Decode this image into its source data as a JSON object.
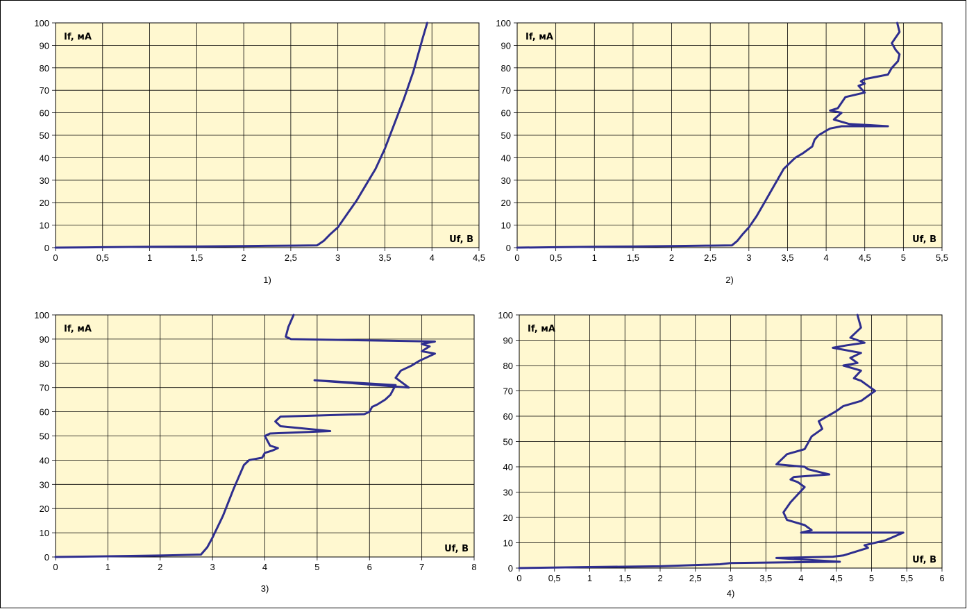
{
  "chart_data": [
    {
      "type": "line",
      "caption": "1)",
      "xlabel": "Uf, B",
      "ylabel": "If, мА",
      "xlim": [
        0,
        4.5
      ],
      "ylim": [
        0,
        100
      ],
      "xticks": [
        "0",
        "0,5",
        "1",
        "1,5",
        "2",
        "2,5",
        "3",
        "3,5",
        "4",
        "4,5"
      ],
      "yticks": [
        "0",
        "10",
        "20",
        "30",
        "40",
        "50",
        "60",
        "70",
        "80",
        "90",
        "100"
      ],
      "grid": true,
      "line_color": "#2e2e8e",
      "series": [
        {
          "x": [
            0,
            0.5,
            1,
            1.5,
            2,
            2.5,
            2.78,
            2.85,
            2.92,
            3.0,
            3.1,
            3.2,
            3.3,
            3.4,
            3.5,
            3.6,
            3.7,
            3.8,
            3.9,
            3.95
          ],
          "y": [
            0,
            0.2,
            0.4,
            0.5,
            0.7,
            0.9,
            1,
            3,
            6,
            9,
            15,
            21,
            28,
            35,
            44,
            55,
            66,
            78,
            93,
            100
          ]
        }
      ]
    },
    {
      "type": "line",
      "caption": "2)",
      "xlabel": "Uf, B",
      "ylabel": "If, мА",
      "xlim": [
        0,
        5.5
      ],
      "ylim": [
        0,
        100
      ],
      "xticks": [
        "0",
        "0,5",
        "1",
        "1,5",
        "2",
        "2,5",
        "3",
        "3,5",
        "4",
        "4,5",
        "5",
        "5,5"
      ],
      "yticks": [
        "0",
        "10",
        "20",
        "30",
        "40",
        "50",
        "60",
        "70",
        "80",
        "90",
        "100"
      ],
      "grid": true,
      "line_color": "#2e2e8e",
      "series": [
        {
          "x": [
            0,
            0.5,
            1,
            1.5,
            2,
            2.5,
            2.78,
            2.85,
            2.92,
            3.0,
            3.1,
            3.2,
            3.3,
            3.45,
            3.6,
            3.7,
            3.82,
            3.85,
            3.9,
            4.0,
            4.05,
            4.2,
            4.8,
            4.3,
            4.1,
            4.2,
            4.05,
            4.15,
            4.25,
            4.5,
            4.42,
            4.5,
            4.45,
            4.5,
            4.8,
            4.85,
            4.93,
            4.95,
            4.9,
            4.85,
            4.95,
            4.92
          ],
          "y": [
            0,
            0.2,
            0.4,
            0.5,
            0.7,
            0.9,
            1,
            3,
            6,
            9,
            14,
            20,
            26,
            35,
            40,
            42,
            45,
            48,
            50,
            52,
            53,
            54,
            54,
            55,
            57,
            60,
            61,
            62,
            67,
            69,
            72,
            73,
            74,
            75,
            77,
            80,
            83,
            86,
            88,
            91,
            96,
            100
          ]
        }
      ]
    },
    {
      "type": "line",
      "caption": "3)",
      "xlabel": "Uf, B",
      "ylabel": "If, мА",
      "xlim": [
        0,
        8
      ],
      "ylim": [
        0,
        100
      ],
      "xticks": [
        "0",
        "1",
        "2",
        "3",
        "4",
        "5",
        "6",
        "7",
        "8"
      ],
      "yticks": [
        "0",
        "10",
        "20",
        "30",
        "40",
        "50",
        "60",
        "70",
        "80",
        "90",
        "100"
      ],
      "grid": true,
      "line_color": "#2e2e8e",
      "series": [
        {
          "x": [
            0,
            1,
            2,
            2.78,
            2.9,
            3.0,
            3.2,
            3.4,
            3.6,
            3.7,
            3.95,
            4.0,
            4.15,
            4.25,
            4.1,
            4.0,
            4.1,
            5.25,
            4.3,
            4.2,
            4.3,
            5.9,
            6.0,
            6.05,
            6.15,
            6.3,
            6.4,
            6.5,
            4.95,
            6.75,
            6.5,
            6.6,
            6.8,
            6.95,
            7.25,
            7.0,
            7.15,
            7.0,
            7.25,
            4.5,
            4.4,
            4.45,
            4.55
          ],
          "y": [
            0,
            0.3,
            0.6,
            1,
            4,
            8,
            17,
            28,
            38,
            40,
            41,
            43,
            44,
            45,
            46,
            50,
            51,
            52,
            54,
            56,
            58,
            59,
            60,
            62,
            63,
            65,
            67,
            71,
            73,
            70,
            74,
            77,
            79,
            81,
            84,
            85,
            87,
            88,
            89,
            90,
            91,
            95,
            100
          ]
        }
      ]
    },
    {
      "type": "line",
      "caption": "4)",
      "xlabel": "Uf, B",
      "ylabel": "If, мА",
      "xlim": [
        0,
        6
      ],
      "ylim": [
        0,
        100
      ],
      "xticks": [
        "0",
        "0,5",
        "1",
        "1,5",
        "2",
        "2,5",
        "3",
        "3,5",
        "4",
        "4,5",
        "5",
        "5,5",
        "6"
      ],
      "yticks": [
        "0",
        "10",
        "20",
        "30",
        "40",
        "50",
        "60",
        "70",
        "80",
        "90",
        "100"
      ],
      "grid": true,
      "line_color": "#2e2e8e",
      "series": [
        {
          "x": [
            0,
            1,
            2,
            2.85,
            3.0,
            4.55,
            3.65,
            4.45,
            4.6,
            4.95,
            4.9,
            5.2,
            5.45,
            4.0,
            4.15,
            4.05,
            3.8,
            3.75,
            3.85,
            4.05,
            3.95,
            3.85,
            3.9,
            4.4,
            4.1,
            4.05,
            3.65,
            3.8,
            4.05,
            4.15,
            4.3,
            4.25,
            4.5,
            4.6,
            4.85,
            5.05,
            4.95,
            4.85,
            4.75,
            4.85,
            4.6,
            4.8,
            4.7,
            4.85,
            4.45,
            4.65,
            4.9,
            4.7,
            4.85,
            4.8
          ],
          "y": [
            0,
            0.4,
            0.7,
            1.5,
            2,
            2.5,
            4,
            4.5,
            5,
            8,
            9,
            11,
            14,
            14,
            15,
            17,
            19,
            22,
            26,
            32,
            34,
            35,
            36,
            37,
            39,
            40,
            41,
            45,
            47,
            52,
            55,
            58,
            62,
            64,
            66,
            70,
            72,
            74,
            75,
            78,
            80,
            81,
            83,
            85,
            87,
            88,
            89,
            91,
            95,
            100
          ]
        }
      ]
    }
  ]
}
